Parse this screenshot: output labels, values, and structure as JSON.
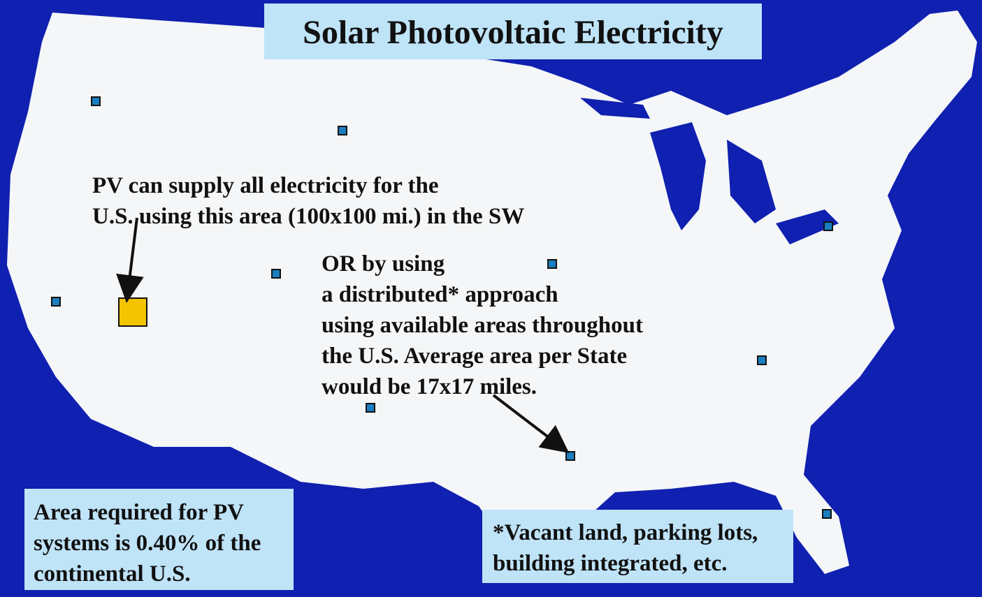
{
  "title": "Solar Photovoltaic Electricity",
  "annotations": [
    {
      "lines": [
        "PV can supply all electricity for the",
        "U.S. using this area (100x100 mi.) in the SW"
      ]
    },
    {
      "lines": [
        "OR by using",
        "a distributed* approach",
        "using available areas throughout",
        "the U.S. Average area per State",
        "would be 17x17 miles."
      ]
    }
  ],
  "notes": [
    {
      "lines": [
        "Area required for PV",
        "systems is 0.40% of the",
        "continental U.S."
      ]
    },
    {
      "lines": [
        "*Vacant land, parking lots,",
        "building integrated, etc."
      ]
    }
  ]
}
